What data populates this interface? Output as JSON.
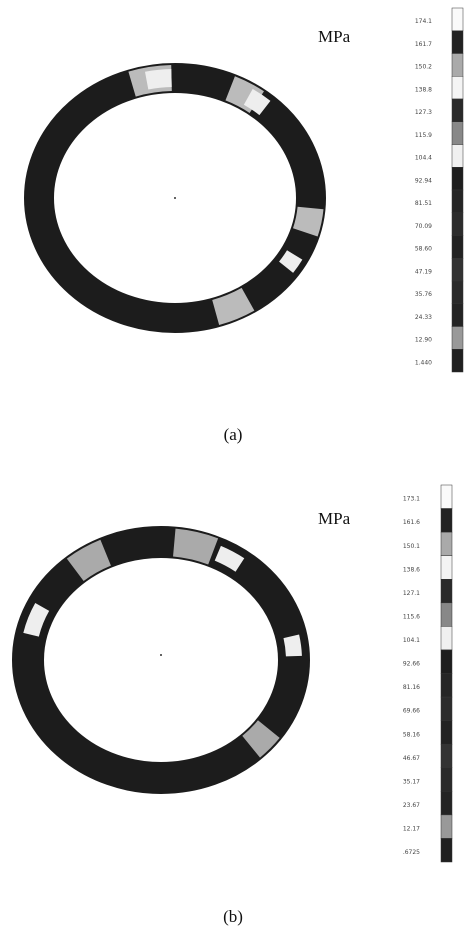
{
  "figures": [
    {
      "unit": "MPa",
      "caption": "(a)",
      "levels": [
        "174.1",
        "161.7",
        "150.2",
        "138.8",
        "127.3",
        "115.9",
        "104.4",
        "92.94",
        "81.51",
        "70.09",
        "58.60",
        "47.19",
        "35.76",
        "24.33",
        "12.90",
        "1.440"
      ]
    },
    {
      "unit": "MPa",
      "caption": "(b)",
      "levels": [
        "173.1",
        "161.6",
        "150.1",
        "138.6",
        "127.1",
        "115.6",
        "104.1",
        "92.66",
        "81.16",
        "69.66",
        "58.16",
        "46.67",
        "35.17",
        "23.67",
        "12.17",
        ".6725"
      ]
    }
  ]
}
